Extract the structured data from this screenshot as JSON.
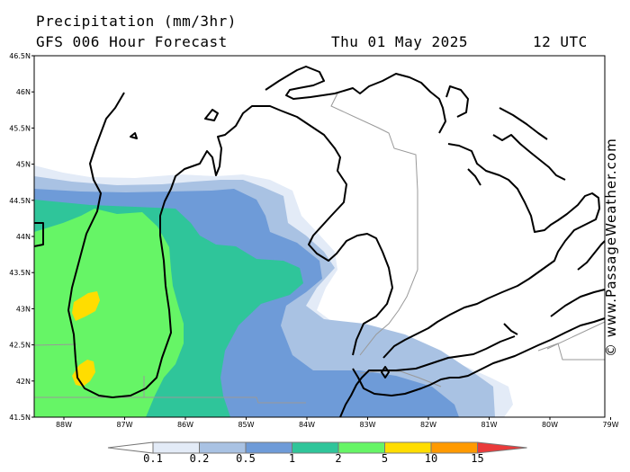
{
  "header": {
    "title": "Precipitation (mm/3hr)",
    "model": "GFS 006 Hour Forecast",
    "date": "Thu 01 May 2025",
    "time": "12 UTC"
  },
  "credit": "© www.PassageWeather.com",
  "axes": {
    "lat_labels": [
      "46.5N",
      "46N",
      "45.5N",
      "45N",
      "44.5N",
      "44N",
      "43.5N",
      "43N",
      "42.5N",
      "42N",
      "41.5N"
    ],
    "lon_labels": [
      "88W",
      "87W",
      "86W",
      "85W",
      "84W",
      "83W",
      "82W",
      "81W",
      "80W",
      "79W"
    ]
  },
  "legend": {
    "labels": [
      "0.1",
      "0.2",
      "0.5",
      "1",
      "2",
      "5",
      "10",
      "15"
    ],
    "colors": [
      "#e3ebf7",
      "#a9c2e3",
      "#6e9bd8",
      "#2fc59a",
      "#66f566",
      "#ffdd00",
      "#ff9a00",
      "#ea3a3a"
    ]
  },
  "colors": {
    "precip_0_1": "#e3ebf7",
    "precip_0_2": "#a9c2e3",
    "precip_0_5": "#6e9bd8",
    "precip_1": "#2fc59a",
    "precip_2": "#66f566",
    "precip_5": "#ffdd00"
  }
}
